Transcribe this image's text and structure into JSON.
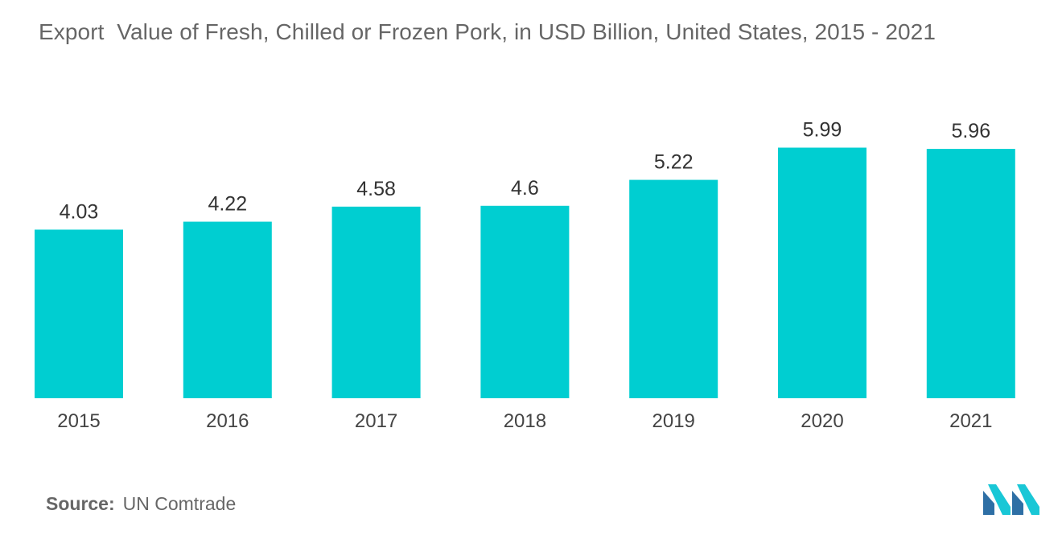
{
  "chart_data": {
    "type": "bar",
    "title": "Export  Value of Fresh, Chilled or Frozen Pork, in USD Billion, United States, 2015 - 2021",
    "categories": [
      "2015",
      "2016",
      "2017",
      "2018",
      "2019",
      "2020",
      "2021"
    ],
    "values": [
      4.03,
      4.22,
      4.58,
      4.6,
      5.22,
      5.99,
      5.96
    ],
    "value_labels": [
      "4.03",
      "4.22",
      "4.58",
      "4.6",
      "5.22",
      "5.99",
      "5.96"
    ],
    "xlabel": "",
    "ylabel": "",
    "ylim": [
      0,
      6
    ],
    "grid": false,
    "legend": "none",
    "bar_color": "#00CED1"
  },
  "source": {
    "label": "Source:",
    "value": "UN Comtrade"
  },
  "colors": {
    "bar": "#00CED1",
    "logo_dark": "#2E6FA5",
    "logo_light": "#19C7D6"
  }
}
